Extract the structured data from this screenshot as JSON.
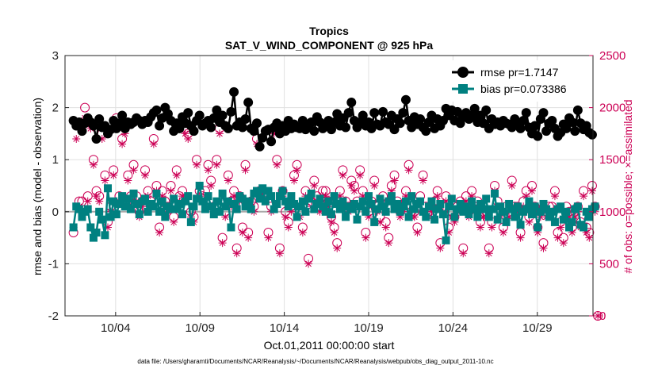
{
  "chart_data": {
    "type": "line",
    "title_line1": "Tropics",
    "title_line2": "SAT_V_WIND_COMPONENT @ 925 hPa",
    "xlabel": "Oct.01,2011 00:00:00 start",
    "ylabel_left": "rmse and bias (model - observation)",
    "ylabel_right": "# of obs: o=possible; ×=assimilated",
    "ylim_left": [
      -2,
      3
    ],
    "ylim_right": [
      0,
      2500
    ],
    "xlim": [
      1,
      32.3
    ],
    "y_left_ticks": [
      "-2",
      "-1",
      "0",
      "1",
      "2",
      "3"
    ],
    "y_right_ticks": [
      "0",
      "500",
      "1000",
      "1500",
      "2000",
      "2500"
    ],
    "x_ticks": [
      {
        "value": 4,
        "label": "10/04"
      },
      {
        "value": 9,
        "label": "10/09"
      },
      {
        "value": 14,
        "label": "10/14"
      },
      {
        "value": 19,
        "label": "10/19"
      },
      {
        "value": 24,
        "label": "10/24"
      },
      {
        "value": 29,
        "label": "10/29"
      }
    ],
    "grid": true,
    "legend_position": "top-right",
    "colors": {
      "rmse": "#000000",
      "bias": "#008080",
      "obs": "#cc0055",
      "zero_line": "#aaaaaa",
      "grid": "#e0e0e0"
    },
    "series": [
      {
        "name": "rmse pr=1.7147",
        "axis": "left",
        "values": [
          1.75,
          1.65,
          1.72,
          1.55,
          1.7,
          1.8,
          1.72,
          1.65,
          1.4,
          1.78,
          1.62,
          1.65,
          1.5,
          1.58,
          1.75,
          1.6,
          1.7,
          1.85,
          1.6,
          1.72,
          1.68,
          1.72,
          1.8,
          1.75,
          1.68,
          1.75,
          1.72,
          1.82,
          1.9,
          1.95,
          1.65,
          1.8,
          2.0,
          1.88,
          1.75,
          1.55,
          1.7,
          1.6,
          1.82,
          1.7,
          1.9,
          1.65,
          1.55,
          1.75,
          1.85,
          1.65,
          1.7,
          1.75,
          1.62,
          1.8,
          1.95,
          1.72,
          1.85,
          1.65,
          1.6,
          1.92,
          2.3,
          1.65,
          1.72,
          1.62,
          1.78,
          2.1,
          1.6,
          1.55,
          1.7,
          1.25,
          1.42,
          1.55,
          1.58,
          1.35,
          1.62,
          1.7,
          1.5,
          1.65,
          1.55,
          1.75,
          1.6,
          1.68,
          1.62,
          1.6,
          1.75,
          1.58,
          1.65,
          1.72,
          1.55,
          1.82,
          1.72,
          1.6,
          1.65,
          1.75,
          1.58,
          1.72,
          1.88,
          1.65,
          1.8,
          1.62,
          1.9,
          2.1,
          1.75,
          1.62,
          1.72,
          1.85,
          1.65,
          1.72,
          1.6,
          1.9,
          1.68,
          1.65,
          1.92,
          1.72,
          1.68,
          1.85,
          1.58,
          1.78,
          1.7,
          1.9,
          2.15,
          1.75,
          1.62,
          1.82,
          1.68,
          1.78,
          1.62,
          1.55,
          1.72,
          1.85,
          1.6,
          1.78,
          1.65,
          1.75,
          1.98,
          1.85,
          1.95,
          1.75,
          1.92,
          1.7,
          1.82,
          1.9,
          1.78,
          1.85,
          1.98,
          1.72,
          1.85,
          1.7,
          1.95,
          1.6,
          1.78,
          1.68,
          1.72,
          1.65,
          1.75,
          1.7,
          1.68,
          1.62,
          1.78,
          1.7,
          1.6,
          1.75,
          1.9,
          1.62,
          1.5,
          1.65,
          1.45,
          1.78,
          1.9,
          1.55,
          1.7,
          1.75,
          1.6,
          1.45,
          1.52,
          1.68,
          1.6,
          1.8,
          1.72,
          1.55,
          1.95,
          1.7,
          1.58,
          1.65,
          1.52,
          1.48
        ]
      },
      {
        "name": "bias pr=0.073386",
        "axis": "left",
        "values": [
          -0.3,
          0.1,
          0.05,
          -0.1,
          0.0,
          0.05,
          -0.3,
          -0.5,
          -0.4,
          0.0,
          -0.15,
          -0.45,
          0.45,
          -0.1,
          0.2,
          -0.05,
          0.15,
          0.3,
          0.1,
          0.25,
          0.05,
          0.35,
          0.15,
          -0.05,
          0.2,
          0.25,
          0.0,
          0.15,
          0.1,
          0.35,
          0.0,
          0.2,
          -0.1,
          0.1,
          0.05,
          0.25,
          0.05,
          0.15,
          -0.05,
          0.2,
          0.3,
          -0.2,
          0.1,
          0.25,
          0.5,
          0.2,
          0.05,
          0.3,
          0.1,
          -0.05,
          0.2,
          0.0,
          0.35,
          0.1,
          0.2,
          -0.3,
          0.15,
          0.05,
          0.3,
          0.25,
          0.1,
          0.2,
          0.05,
          0.35,
          0.4,
          0.25,
          0.45,
          0.2,
          0.4,
          0.3,
          0.05,
          0.15,
          0.3,
          0.4,
          0.2,
          0.1,
          0.3,
          0.15,
          -0.1,
          0.1,
          0.2,
          0.0,
          0.25,
          0.35,
          0.05,
          0.15,
          0.25,
          0.1,
          0.0,
          0.2,
          -0.05,
          0.3,
          0.15,
          0.05,
          0.2,
          -0.1,
          0.1,
          0.05,
          0.15,
          -0.15,
          0.1,
          0.2,
          0.0,
          0.3,
          0.15,
          -0.2,
          0.05,
          0.25,
          0.1,
          0.0,
          0.2,
          0.3,
          0.05,
          0.15,
          0.0,
          0.1,
          0.2,
          -0.1,
          0.3,
          0.05,
          0.15,
          0.2,
          0.0,
          -0.1,
          0.1,
          0.2,
          -0.15,
          0.05,
          0.15,
          -0.05,
          -0.55,
          0.1,
          0.25,
          -0.1,
          0.05,
          0.15,
          0.0,
          0.1,
          -0.05,
          0.2,
          0.05,
          -0.1,
          0.15,
          0.05,
          0.25,
          -0.1,
          0.05,
          0.35,
          -0.15,
          0.1,
          0.0,
          -0.2,
          0.15,
          0.05,
          -0.1,
          0.1,
          -0.25,
          0.0,
          0.05,
          0.2,
          -0.05,
          0.1,
          -0.3,
          0.0,
          0.15,
          0.05,
          -0.1,
          0.0,
          -0.2,
          0.05,
          0.1,
          -0.15,
          0.0,
          -0.3,
          -0.2,
          0.05,
          0.1,
          -0.25,
          -0.3,
          0.0,
          -0.1,
          0.05,
          0.1
        ]
      },
      {
        "name": "possible",
        "axis": "right",
        "values": [
          800,
          1850,
          1100,
          1100,
          2000,
          1150,
          1850,
          1500,
          1200,
          1150,
          1750,
          1350,
          900,
          1050,
          1400,
          1900,
          1150,
          1700,
          1800,
          1350,
          1150,
          1450,
          1150,
          1000,
          1100,
          1400,
          1200,
          1100,
          1700,
          1250,
          850,
          1200,
          1100,
          1050,
          1250,
          950,
          1400,
          1150,
          1200,
          1800,
          1750,
          1000,
          950,
          1500,
          1200,
          1150,
          1200,
          1450,
          1300,
          1050,
          1500,
          1800,
          750,
          1000,
          1350,
          1100,
          1200,
          650,
          1150,
          850,
          1450,
          800,
          1100,
          1050,
          1700,
          1200,
          1200,
          1150,
          800,
          1050,
          1800,
          1500,
          650,
          1200,
          1000,
          900,
          1050,
          1350,
          1450,
          1000,
          850,
          1200,
          550,
          1100,
          1300,
          1150,
          1050,
          1200,
          1200,
          1100,
          950,
          850,
          700,
          1200,
          1400,
          1100,
          1050,
          1300,
          1250,
          1100,
          1400,
          1200,
          800,
          1000,
          1100,
          1300,
          1050,
          950,
          1150,
          900,
          750,
          1250,
          1350,
          1100,
          1000,
          1050,
          1200,
          1450,
          1000,
          1000,
          850,
          1150,
          1350,
          1050,
          1000,
          1050,
          1100,
          1200,
          700,
          1050,
          1150,
          850,
          1000,
          950,
          1050,
          1100,
          650,
          1150,
          1000,
          1200,
          1050,
          1100,
          900,
          1000,
          1000,
          650,
          900,
          1250,
          1100,
          1000,
          850,
          1050,
          1000,
          1300,
          1050,
          1050,
          800,
          1100,
          1200,
          950,
          1250,
          1050,
          850,
          1000,
          700,
          1000,
          1050,
          1050,
          1200,
          800,
          900,
          750,
          1050,
          1000,
          850,
          1000,
          1050,
          900,
          1200,
          850,
          800,
          1250,
          1050,
          0
        ]
      },
      {
        "name": "assimilated",
        "axis": "right",
        "values": [
          850,
          1700,
          1050,
          1000,
          1900,
          1100,
          1800,
          1450,
          1150,
          1100,
          1700,
          1300,
          850,
          1000,
          1350,
          1850,
          1100,
          1650,
          1750,
          1300,
          1100,
          1400,
          1100,
          950,
          1050,
          1350,
          1150,
          1050,
          1650,
          1200,
          800,
          1150,
          1050,
          1000,
          1200,
          900,
          1350,
          1100,
          1150,
          1750,
          1700,
          950,
          900,
          1450,
          1150,
          1100,
          1150,
          1400,
          1250,
          1000,
          1450,
          1750,
          700,
          950,
          1300,
          1050,
          1150,
          600,
          1100,
          800,
          1400,
          750,
          1050,
          1000,
          1650,
          1150,
          1150,
          1100,
          750,
          1000,
          1750,
          1450,
          600,
          1150,
          950,
          850,
          1000,
          1300,
          1400,
          950,
          800,
          1150,
          500,
          1050,
          1250,
          1100,
          1000,
          1150,
          1150,
          1050,
          900,
          800,
          650,
          1150,
          1350,
          1050,
          1000,
          1250,
          1200,
          1050,
          1350,
          1150,
          750,
          950,
          1050,
          1250,
          1000,
          900,
          1100,
          850,
          700,
          1200,
          1300,
          1050,
          950,
          1000,
          1150,
          1400,
          950,
          950,
          800,
          1100,
          1300,
          1000,
          950,
          1000,
          1050,
          1150,
          650,
          1000,
          1100,
          800,
          950,
          900,
          1000,
          1050,
          600,
          1100,
          950,
          1150,
          1000,
          1050,
          850,
          950,
          950,
          600,
          850,
          1200,
          1050,
          950,
          800,
          1000,
          950,
          1250,
          1000,
          1000,
          750,
          1050,
          1150,
          900,
          1200,
          1000,
          800,
          950,
          650,
          950,
          1000,
          1000,
          1150,
          750,
          850,
          700,
          1000,
          950,
          800,
          950,
          1000,
          850,
          1150,
          800,
          750,
          1200,
          1000,
          0
        ]
      }
    ],
    "footer": "data file: /Users/gharamti/Documents/NCAR/Reanalysis/~/Documents/NCAR/Reanalysis/webpub/obs_diag_output_2011-10.nc"
  }
}
